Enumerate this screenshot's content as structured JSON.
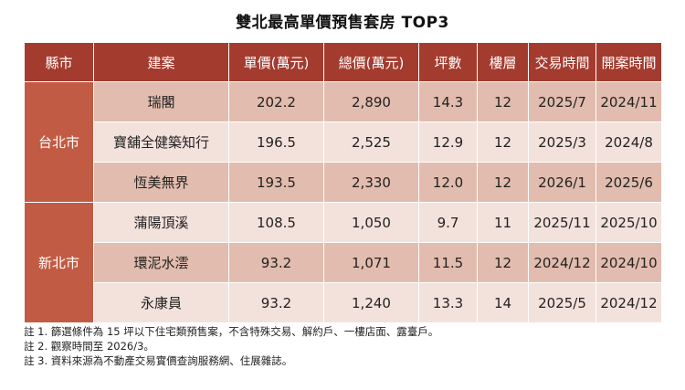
{
  "title": "雙北最高單價預售套房 TOP3",
  "columns": [
    "縣市",
    "建案",
    "單價(萬元)",
    "總價(萬元)",
    "坪數",
    "樓層",
    "交易時間",
    "開案時間"
  ],
  "groups": [
    {
      "region": "台北市",
      "rows": [
        {
          "name": "瑞閣",
          "unit_price": "202.2",
          "total_price": "2,890",
          "size": "14.3",
          "floor": "12",
          "trade_time": "2025/7",
          "open_time": "2024/11"
        },
        {
          "name": "寶舖全健築知行",
          "unit_price": "196.5",
          "total_price": "2,525",
          "size": "12.9",
          "floor": "12",
          "trade_time": "2025/3",
          "open_time": "2024/8"
        },
        {
          "name": "恆美無界",
          "unit_price": "193.5",
          "total_price": "2,330",
          "size": "12.0",
          "floor": "12",
          "trade_time": "2026/1",
          "open_time": "2025/6"
        }
      ]
    },
    {
      "region": "新北市",
      "rows": [
        {
          "name": "蒲陽頂溪",
          "unit_price": "108.5",
          "total_price": "1,050",
          "size": "9.7",
          "floor": "11",
          "trade_time": "2025/11",
          "open_time": "2025/10"
        },
        {
          "name": "環泥水澐",
          "unit_price": "93.2",
          "total_price": "1,071",
          "size": "11.5",
          "floor": "12",
          "trade_time": "2024/12",
          "open_time": "2024/10"
        },
        {
          "name": "永康員",
          "unit_price": "93.2",
          "total_price": "1,240",
          "size": "13.3",
          "floor": "14",
          "trade_time": "2025/5",
          "open_time": "2024/12"
        }
      ]
    }
  ],
  "notes": [
    "註 1. 篩選條件為 15 坪以下住宅類預售案，不含特殊交易、解約戶、一樓店面、露臺戶。",
    "註 2. 觀察時間至 2026/3。",
    "註 3. 資料來源為不動產交易實價查詢服務網、住展雜誌。"
  ],
  "colors": {
    "header_bg": "#a33b2e",
    "region_bg": "#c25b43",
    "row_dark": "#e2bcae",
    "row_light": "#f3e2dc"
  }
}
